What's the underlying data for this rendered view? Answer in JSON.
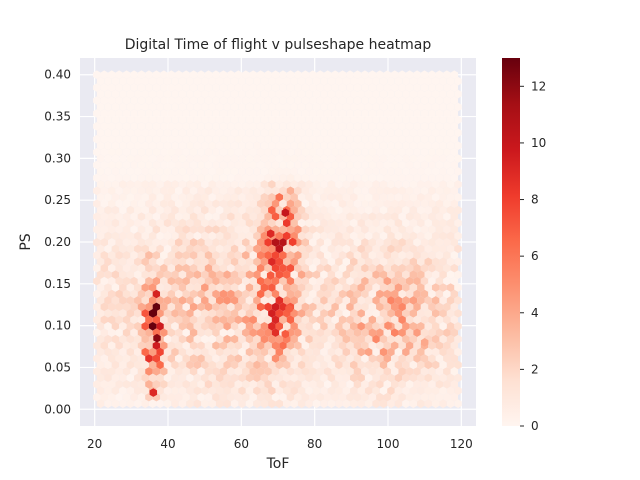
{
  "chart_data": {
    "type": "heatmap",
    "subtype": "hexbin",
    "title": "Digital Time of flight v pulseshape heatmap",
    "xlabel": "ToF",
    "ylabel": "PS",
    "xlim": [
      16,
      124
    ],
    "ylim": [
      -0.02,
      0.42
    ],
    "xticks": [
      20,
      40,
      60,
      80,
      100,
      120
    ],
    "yticks": [
      0.0,
      0.05,
      0.1,
      0.15,
      0.2,
      0.25,
      0.3,
      0.35,
      0.4
    ],
    "xtick_labels": [
      "20",
      "40",
      "60",
      "80",
      "100",
      "120"
    ],
    "ytick_labels": [
      "0.00",
      "0.05",
      "0.10",
      "0.15",
      "0.20",
      "0.25",
      "0.30",
      "0.35",
      "0.40"
    ],
    "data_extent": {
      "x": [
        20,
        120
      ],
      "y": [
        0.0,
        0.4
      ]
    },
    "colormap": "Reds",
    "colorbar": {
      "range": [
        0,
        13
      ],
      "ticks": [
        0,
        2,
        4,
        6,
        8,
        10,
        12
      ],
      "tick_labels": [
        "0",
        "2",
        "4",
        "6",
        "8",
        "10",
        "12"
      ]
    },
    "background_color": "#eaeaf2",
    "grid": true,
    "hot_spots": [
      {
        "tof": 36,
        "ps": 0.115,
        "count": 13
      },
      {
        "tof": 37,
        "ps": 0.085,
        "count": 12
      },
      {
        "tof": 36,
        "ps": 0.02,
        "count": 9
      },
      {
        "tof": 72,
        "ps": 0.235,
        "count": 10
      },
      {
        "tof": 68,
        "ps": 0.21,
        "count": 9
      },
      {
        "tof": 74,
        "ps": 0.2,
        "count": 8
      },
      {
        "tof": 68,
        "ps": 0.16,
        "count": 7
      },
      {
        "tof": 73,
        "ps": 0.12,
        "count": 7
      },
      {
        "tof": 72,
        "ps": 0.09,
        "count": 7
      },
      {
        "tof": 100,
        "ps": 0.1,
        "count": 5
      },
      {
        "tof": 110,
        "ps": 0.08,
        "count": 4
      }
    ]
  }
}
